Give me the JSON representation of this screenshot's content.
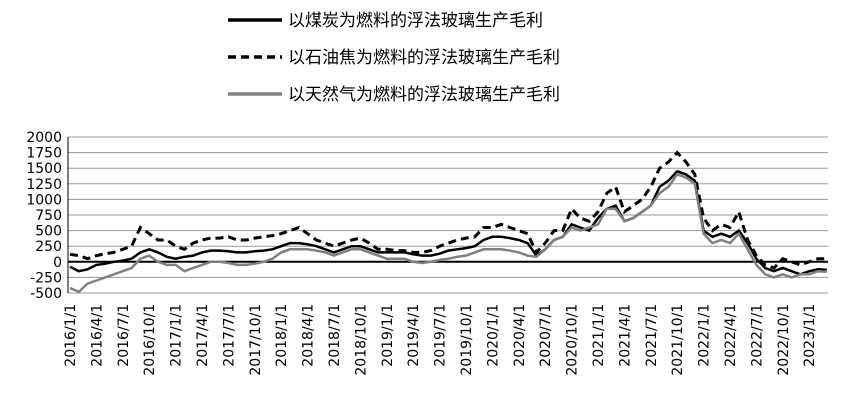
{
  "chart_data": {
    "type": "line",
    "x": [
      "2016/1/1",
      "2016/2/1",
      "2016/3/1",
      "2016/4/1",
      "2016/5/1",
      "2016/6/1",
      "2016/7/1",
      "2016/8/1",
      "2016/9/1",
      "2016/10/1",
      "2016/11/1",
      "2016/12/1",
      "2017/1/1",
      "2017/2/1",
      "2017/3/1",
      "2017/4/1",
      "2017/5/1",
      "2017/6/1",
      "2017/7/1",
      "2017/8/1",
      "2017/9/1",
      "2017/10/1",
      "2017/11/1",
      "2017/12/1",
      "2018/1/1",
      "2018/2/1",
      "2018/3/1",
      "2018/4/1",
      "2018/5/1",
      "2018/6/1",
      "2018/7/1",
      "2018/8/1",
      "2018/9/1",
      "2018/10/1",
      "2018/11/1",
      "2018/12/1",
      "2019/1/1",
      "2019/2/1",
      "2019/3/1",
      "2019/4/1",
      "2019/5/1",
      "2019/6/1",
      "2019/7/1",
      "2019/8/1",
      "2019/9/1",
      "2019/10/1",
      "2019/11/1",
      "2019/12/1",
      "2020/1/1",
      "2020/2/1",
      "2020/3/1",
      "2020/4/1",
      "2020/5/1",
      "2020/6/1",
      "2020/7/1",
      "2020/8/1",
      "2020/9/1",
      "2020/10/1",
      "2020/11/1",
      "2020/12/1",
      "2021/1/1",
      "2021/2/1",
      "2021/3/1",
      "2021/4/1",
      "2021/5/1",
      "2021/6/1",
      "2021/7/1",
      "2021/8/1",
      "2021/9/1",
      "2021/10/1",
      "2021/11/1",
      "2021/12/1",
      "2022/1/1",
      "2022/2/1",
      "2022/3/1",
      "2022/4/1",
      "2022/5/1",
      "2022/6/1",
      "2022/7/1",
      "2022/8/1",
      "2022/9/1",
      "2022/10/1",
      "2022/11/1",
      "2022/12/1",
      "2023/1/1",
      "2023/2/1",
      "2023/3/1"
    ],
    "xticks": [
      "2016/1/1",
      "2016/4/1",
      "2016/7/1",
      "2016/10/1",
      "2017/1/1",
      "2017/4/1",
      "2017/7/1",
      "2017/10/1",
      "2018/1/1",
      "2018/4/1",
      "2018/7/1",
      "2018/10/1",
      "2019/1/1",
      "2019/4/1",
      "2019/7/1",
      "2019/10/1",
      "2020/1/1",
      "2020/4/1",
      "2020/7/1",
      "2020/10/1",
      "2021/1/1",
      "2021/4/1",
      "2021/7/1",
      "2021/10/1",
      "2022/1/1",
      "2022/4/1",
      "2022/7/1",
      "2022/10/1",
      "2023/1/1"
    ],
    "ylim": [
      -500,
      2000
    ],
    "yticks": [
      -500,
      -250,
      0,
      250,
      500,
      750,
      1000,
      1250,
      1500,
      1750,
      2000
    ],
    "grid": true,
    "series": [
      {
        "name": "以煤炭为燃料的浮法玻璃生产毛利",
        "color": "#000000",
        "dash": "solid",
        "values": [
          -80,
          -150,
          -120,
          -50,
          -30,
          0,
          20,
          50,
          150,
          200,
          150,
          80,
          50,
          80,
          100,
          150,
          180,
          180,
          170,
          150,
          150,
          170,
          180,
          200,
          250,
          300,
          300,
          280,
          250,
          200,
          150,
          200,
          250,
          250,
          200,
          150,
          150,
          150,
          150,
          120,
          100,
          100,
          130,
          180,
          200,
          220,
          250,
          350,
          400,
          400,
          380,
          350,
          300,
          100,
          200,
          350,
          400,
          600,
          550,
          500,
          700,
          850,
          900,
          650,
          700,
          800,
          900,
          1200,
          1300,
          1450,
          1400,
          1300,
          500,
          400,
          450,
          400,
          500,
          300,
          50,
          -100,
          -150,
          -100,
          -150,
          -200,
          -150,
          -120,
          -130
        ]
      },
      {
        "name": "以石油焦为燃料的浮法玻璃生产毛利",
        "color": "#000000",
        "dash": "dashed",
        "values": [
          120,
          100,
          50,
          100,
          130,
          150,
          200,
          250,
          550,
          450,
          350,
          350,
          250,
          200,
          300,
          350,
          380,
          380,
          400,
          350,
          350,
          380,
          400,
          420,
          450,
          500,
          550,
          450,
          350,
          300,
          250,
          300,
          350,
          380,
          300,
          200,
          200,
          180,
          180,
          150,
          150,
          180,
          250,
          300,
          350,
          380,
          400,
          550,
          550,
          600,
          550,
          500,
          450,
          150,
          300,
          500,
          500,
          850,
          700,
          650,
          800,
          1100,
          1200,
          800,
          900,
          1000,
          1200,
          1500,
          1600,
          1750,
          1600,
          1400,
          700,
          500,
          600,
          550,
          800,
          350,
          100,
          -50,
          -100,
          50,
          0,
          -50,
          0,
          50,
          50
        ]
      },
      {
        "name": "以天然气为燃料的浮法玻璃生产毛利",
        "color": "#808080",
        "dash": "solid",
        "values": [
          -420,
          -480,
          -350,
          -300,
          -250,
          -200,
          -150,
          -100,
          50,
          100,
          0,
          -50,
          -50,
          -150,
          -100,
          -50,
          0,
          0,
          -20,
          -50,
          -50,
          -30,
          0,
          50,
          150,
          200,
          200,
          200,
          180,
          150,
          100,
          150,
          200,
          200,
          150,
          100,
          50,
          50,
          50,
          0,
          -20,
          0,
          30,
          50,
          80,
          100,
          150,
          200,
          200,
          200,
          180,
          150,
          100,
          80,
          200,
          350,
          400,
          550,
          500,
          550,
          600,
          850,
          850,
          650,
          700,
          800,
          900,
          1100,
          1200,
          1400,
          1350,
          1250,
          450,
          300,
          350,
          300,
          450,
          200,
          -50,
          -200,
          -250,
          -200,
          -250,
          -200,
          -200,
          -150,
          -160
        ]
      }
    ]
  }
}
